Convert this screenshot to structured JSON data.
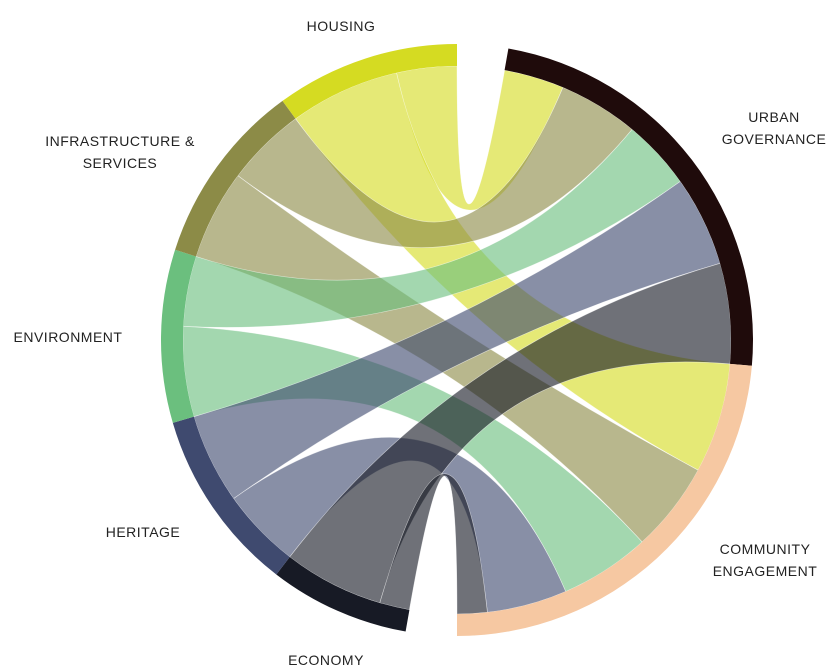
{
  "chart_data": {
    "type": "chord",
    "groups": [
      {
        "name": "URBAN GOVERNANCE",
        "color": "#1f0b0b"
      },
      {
        "name": "COMMUNITY ENGAGEMENT",
        "color": "#f6c8a2"
      },
      {
        "name": "ECONOMY",
        "color": "#171a25"
      },
      {
        "name": "HERITAGE",
        "color": "#3f4a6f"
      },
      {
        "name": "ENVIRONMENT",
        "color": "#6bbf7e"
      },
      {
        "name": "INFRASTRUCTURE & SERVICES",
        "color": "#8c8b47"
      },
      {
        "name": "HOUSING",
        "color": "#d5db22"
      }
    ],
    "flows": [
      {
        "source": 6,
        "target": 0,
        "value": 12
      },
      {
        "source": 6,
        "target": 1,
        "value": 22
      },
      {
        "source": 5,
        "target": 0,
        "value": 16
      },
      {
        "source": 5,
        "target": 1,
        "value": 18
      },
      {
        "source": 4,
        "target": 0,
        "value": 14
      },
      {
        "source": 4,
        "target": 1,
        "value": 18
      },
      {
        "source": 3,
        "target": 0,
        "value": 18
      },
      {
        "source": 3,
        "target": 1,
        "value": 16
      },
      {
        "source": 2,
        "target": 0,
        "value": 20
      },
      {
        "source": 2,
        "target": 1,
        "value": 6
      }
    ]
  }
}
